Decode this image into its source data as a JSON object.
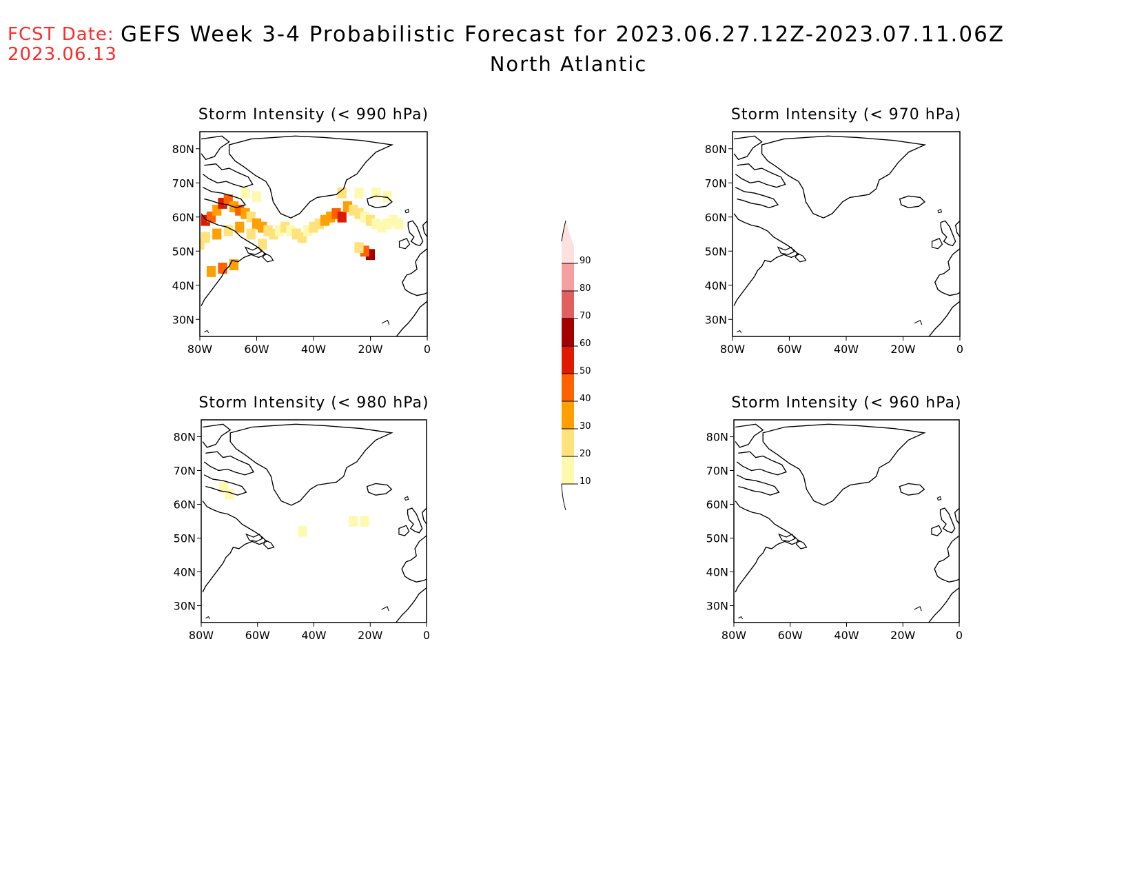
{
  "header": {
    "fcst_label": "FCST Date:",
    "fcst_date": "2023.06.13",
    "title": "GEFS Week 3-4 Probabilistic Forecast for 2023.06.27.12Z-2023.07.11.06Z",
    "subtitle": "North Atlantic"
  },
  "panels": [
    {
      "id": "p990",
      "title": "Storm Intensity (< 990 hPa)"
    },
    {
      "id": "p970",
      "title": "Storm Intensity (< 970 hPa)"
    },
    {
      "id": "p980",
      "title": "Storm Intensity (< 980 hPa)"
    },
    {
      "id": "p960",
      "title": "Storm Intensity (< 960 hPa)"
    }
  ],
  "axes": {
    "lon_ticks": [
      "80W",
      "60W",
      "40W",
      "20W",
      "0"
    ],
    "lat_ticks": [
      "80N",
      "70N",
      "60N",
      "50N",
      "40N",
      "30N"
    ]
  },
  "colorbar": {
    "levels": [
      "10",
      "20",
      "30",
      "40",
      "50",
      "60",
      "70",
      "80",
      "90"
    ],
    "colors": [
      "#fff9b0",
      "#ffe27a",
      "#ffa000",
      "#ff6000",
      "#e01a00",
      "#a50000",
      "#e06060",
      "#f4a0a0",
      "#fde0e0"
    ]
  },
  "chart_data": [
    {
      "type": "heatmap",
      "title": "Storm Intensity (< 990 hPa)",
      "xlim": [
        -80,
        0
      ],
      "ylim": [
        25,
        85
      ],
      "cells": [
        [
          -78,
          59,
          55
        ],
        [
          -76,
          60,
          45
        ],
        [
          -74,
          62,
          35
        ],
        [
          -72,
          64,
          55
        ],
        [
          -70,
          65,
          45
        ],
        [
          -68,
          63,
          35
        ],
        [
          -66,
          62,
          45
        ],
        [
          -64,
          61,
          30
        ],
        [
          -62,
          60,
          25
        ],
        [
          -60,
          58,
          30
        ],
        [
          -58,
          57,
          35
        ],
        [
          -56,
          56,
          25
        ],
        [
          -54,
          55,
          20
        ],
        [
          -52,
          56,
          15
        ],
        [
          -50,
          57,
          20
        ],
        [
          -48,
          56,
          15
        ],
        [
          -46,
          55,
          20
        ],
        [
          -44,
          54,
          25
        ],
        [
          -42,
          56,
          15
        ],
        [
          -40,
          57,
          20
        ],
        [
          -38,
          58,
          25
        ],
        [
          -36,
          59,
          30
        ],
        [
          -34,
          60,
          35
        ],
        [
          -32,
          61,
          45
        ],
        [
          -30,
          60,
          55
        ],
        [
          -28,
          63,
          30
        ],
        [
          -26,
          62,
          25
        ],
        [
          -24,
          61,
          20
        ],
        [
          -22,
          60,
          15
        ],
        [
          -20,
          59,
          20
        ],
        [
          -18,
          58,
          15
        ],
        [
          -16,
          57,
          10
        ],
        [
          -14,
          58,
          10
        ],
        [
          -12,
          59,
          15
        ],
        [
          -10,
          58,
          15
        ],
        [
          -20,
          49,
          60
        ],
        [
          -22,
          50,
          45
        ],
        [
          -24,
          51,
          25
        ],
        [
          -76,
          44,
          30
        ],
        [
          -72,
          45,
          45
        ],
        [
          -68,
          46,
          35
        ],
        [
          -80,
          52,
          25
        ],
        [
          -78,
          54,
          20
        ],
        [
          -74,
          55,
          30
        ],
        [
          -70,
          56,
          25
        ],
        [
          -66,
          57,
          30
        ],
        [
          -62,
          55,
          20
        ],
        [
          -58,
          52,
          20
        ],
        [
          -24,
          67,
          15
        ],
        [
          -18,
          67,
          15
        ],
        [
          -14,
          66,
          15
        ],
        [
          -30,
          67,
          20
        ],
        [
          -64,
          67,
          15
        ],
        [
          -60,
          66,
          10
        ]
      ]
    },
    {
      "type": "heatmap",
      "title": "Storm Intensity (< 980 hPa)",
      "xlim": [
        -80,
        0
      ],
      "ylim": [
        25,
        85
      ],
      "cells": [
        [
          -72,
          65,
          15
        ],
        [
          -70,
          63,
          12
        ],
        [
          -44,
          52,
          12
        ],
        [
          -26,
          55,
          15
        ],
        [
          -22,
          55,
          10
        ]
      ]
    },
    {
      "type": "heatmap",
      "title": "Storm Intensity (< 970 hPa)",
      "xlim": [
        -80,
        0
      ],
      "ylim": [
        25,
        85
      ],
      "cells": []
    },
    {
      "type": "heatmap",
      "title": "Storm Intensity (< 960 hPa)",
      "xlim": [
        -80,
        0
      ],
      "ylim": [
        25,
        85
      ],
      "cells": []
    }
  ]
}
